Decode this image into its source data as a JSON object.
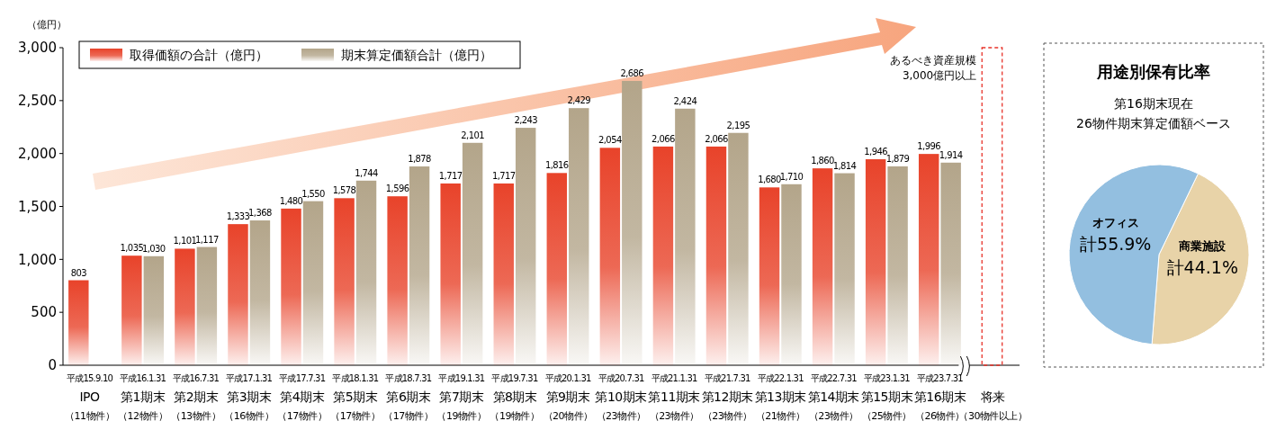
{
  "chart_data": [
    {
      "type": "bar",
      "ylabel": "（億円）",
      "categories": [
        "平成15.9.10\nIPO（11物件）",
        "平成16.1.31\n第1期末（12物件）",
        "平成16.7.31\n第2期末（13物件）",
        "平成17.1.31\n第3期末（16物件）",
        "平成17.7.31\n第4期末（17物件）",
        "平成18.1.31\n第5期末（17物件）",
        "平成18.7.31\n第6期末（17物件）",
        "平成19.1.31\n第7期末（19物件）",
        "平成19.7.31\n第8期末（19物件）",
        "平成20.1.31\n第9期末（20物件）",
        "平成20.7.31\n第10期末（23物件）",
        "平成21.1.31\n第11期末（23物件）",
        "平成21.7.31\n第12期末（23物件）",
        "平成22.1.31\n第13期末（21物件）",
        "平成22.7.31\n第14期末（23物件）",
        "平成23.1.31\n第15期末（25物件）",
        "平成23.7.31\n第16期末（26物件）",
        "将来（30物件以上）"
      ],
      "series": [
        {
          "name": "取得価額の合計（億円）",
          "color": "#e8432a",
          "values": [
            803,
            1035,
            1101,
            1333,
            1480,
            1578,
            1596,
            1717,
            1717,
            1816,
            2054,
            2066,
            2066,
            1680,
            1860,
            1946,
            1996,
            null
          ],
          "value_labels": [
            "803",
            "1,035",
            "1,101",
            "1,333",
            "1,480",
            "1,578",
            "1,596",
            "1,717",
            "1,717",
            "1,816",
            "2,054",
            "2,066",
            "2,066",
            "1,680",
            "1,860",
            "1,946",
            "1,996",
            null
          ]
        },
        {
          "name": "期末算定価額合計（億円）",
          "color": "#b3a58a",
          "values": [
            null,
            1030,
            1117,
            1368,
            1550,
            1744,
            1878,
            2101,
            2243,
            2429,
            2686,
            2424,
            2195,
            1710,
            1814,
            1879,
            1914,
            null
          ],
          "value_labels": [
            null,
            "1,030",
            "1,117",
            "1,368",
            "1,550",
            "1,744",
            "1,878",
            "2,101",
            "2,243",
            "2,429",
            "2,686",
            "2,424",
            "2,195",
            "1,710",
            "1,814",
            "1,879",
            "1,914",
            null
          ]
        },
        {
          "color": "#e8332a",
          "line_style": "dashed",
          "values": [
            null,
            null,
            null,
            null,
            null,
            null,
            null,
            null,
            null,
            null,
            null,
            null,
            null,
            null,
            null,
            null,
            null,
            3000
          ]
        }
      ],
      "ylim": [
        0,
        3000
      ],
      "yticks": [
        0,
        {
          "value": 500,
          "label": "500"
        },
        {
          "value": 1000,
          "label": "1,000"
        },
        {
          "value": 1500,
          "label": "1,500"
        },
        {
          "value": 2000,
          "label": "2,000"
        },
        {
          "value": 2500,
          "label": "2,500"
        },
        {
          "value": 3000,
          "label": "3,000"
        }
      ],
      "legend": "top left",
      "annotations": [
        "あるべき資産規模\n3,000億円以上"
      ]
    },
    {
      "type": "pie",
      "title": "用途別保有比率",
      "subtitle": "第16期末現在\n26物件期末算定価額ベース",
      "categories": [
        "商業施設",
        "オフィス"
      ],
      "values": [
        44.1,
        55.9
      ],
      "colors": [
        "#e8d3a8",
        "#93bfe0"
      ],
      "value_labels": [
        "計44.1%",
        "計55.9%"
      ]
    }
  ]
}
